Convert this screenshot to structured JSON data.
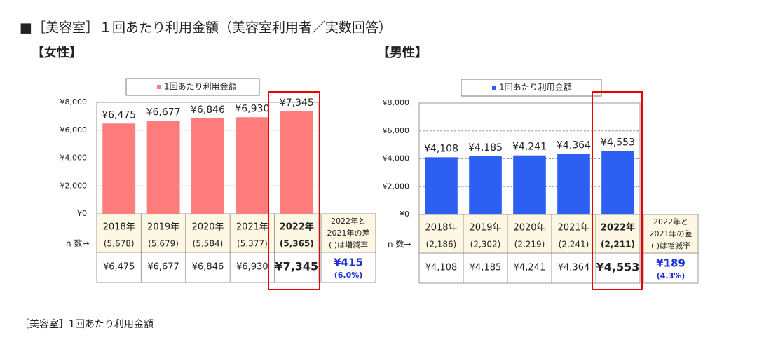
{
  "title": "■［美容室］１回あたり利用金額（美容室利用者／実数回答）",
  "caption": "［美容室］1回あたり利用金額",
  "chart_data": [
    {
      "type": "bar",
      "subtitle": "【女性】",
      "categories": [
        "2018年",
        "2019年",
        "2020年",
        "2021年",
        "2022年"
      ],
      "series": [
        {
          "name": "1回あたり利用金額",
          "color": "#ff7c7c",
          "values": [
            6475,
            6677,
            6846,
            6930,
            7345
          ],
          "value_labels": [
            "¥6,475",
            "¥6,677",
            "¥6,846",
            "¥6,930",
            "¥7,345"
          ]
        }
      ],
      "ylim": [
        0,
        8000
      ],
      "yticks": [
        {
          "value": 0,
          "label": "¥0"
        },
        {
          "value": 2000,
          "label": "¥2,000"
        },
        {
          "value": 4000,
          "label": "¥4,000"
        },
        {
          "value": 6000,
          "label": "¥6,000"
        },
        {
          "value": 8000,
          "label": "¥8,000"
        }
      ],
      "grid": true,
      "n_title": "n 数→",
      "n_labels": [
        "(5,678)",
        "(5,679)",
        "(5,584)",
        "(5,377)",
        "(5,365)"
      ],
      "difference_title": [
        "2022年と",
        "2021年の差",
        "( )は増減率"
      ],
      "difference": "¥415",
      "change": "(6.0%)"
    },
    {
      "type": "bar",
      "subtitle": "【男性】",
      "categories": [
        "2018年",
        "2019年",
        "2020年",
        "2021年",
        "2022年"
      ],
      "series": [
        {
          "name": "1回あたり利用金額",
          "color": "#2d5ff2",
          "values": [
            4108,
            4185,
            4241,
            4364,
            4553
          ],
          "value_labels": [
            "¥4,108",
            "¥4,185",
            "¥4,241",
            "¥4,364",
            "¥4,553"
          ]
        }
      ],
      "ylim": [
        0,
        8000
      ],
      "yticks": [
        {
          "value": 0,
          "label": "¥0"
        },
        {
          "value": 2000,
          "label": "¥2,000"
        },
        {
          "value": 4000,
          "label": "¥4,000"
        },
        {
          "value": 6000,
          "label": "¥6,000"
        },
        {
          "value": 8000,
          "label": "¥8,000"
        }
      ],
      "grid": true,
      "n_title": "n 数→",
      "n_labels": [
        "(2,186)",
        "(2,302)",
        "(2,219)",
        "(2,241)",
        "(2,211)"
      ],
      "difference_title": [
        "2022年と",
        "2021年の差",
        "( )は増減率"
      ],
      "difference": "¥189",
      "change": "(4.3%)"
    }
  ]
}
